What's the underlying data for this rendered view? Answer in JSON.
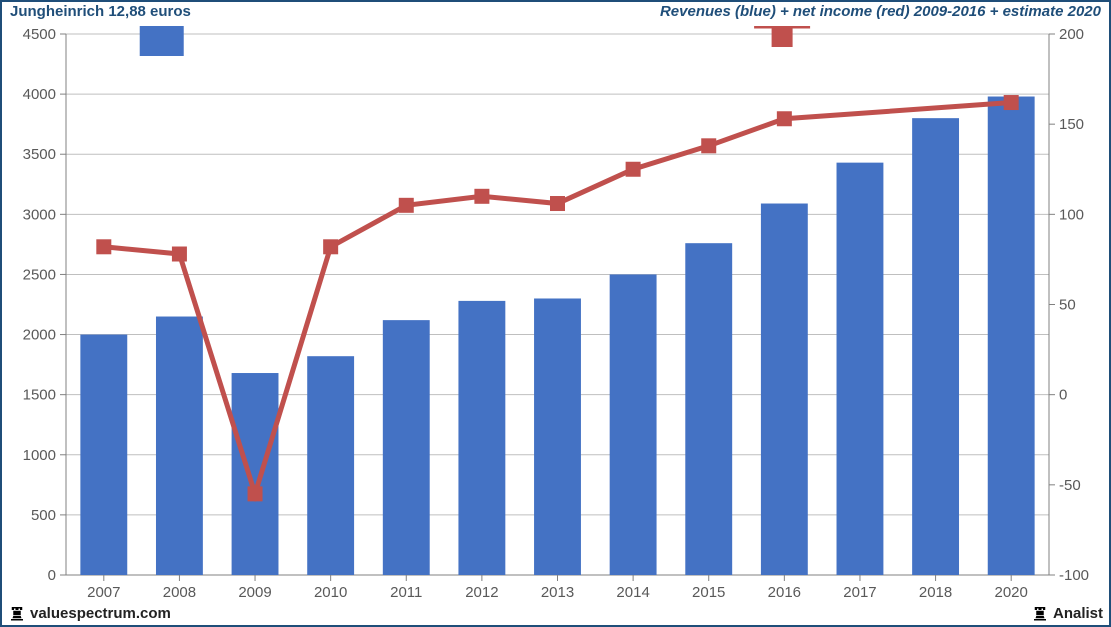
{
  "header": {
    "left": "Jungheinrich 12,88 euros",
    "right": "Revenues (blue) + net income (red) 2009-2016 + estimate 2020",
    "text_color": "#1f4e79"
  },
  "footer": {
    "left": "valuespectrum.com",
    "right": "Analist",
    "icon_color": "#000000"
  },
  "chart": {
    "type": "bar+line",
    "categories": [
      "2007",
      "2008",
      "2009",
      "2010",
      "2011",
      "2012",
      "2013",
      "2014",
      "2015",
      "2016",
      "2017",
      "2018",
      "2020"
    ],
    "left_axis": {
      "min": 0,
      "max": 4500,
      "tick_step": 500,
      "tick_fontsize": 15,
      "tick_color": "#595959"
    },
    "right_axis": {
      "min": -100,
      "max": 200,
      "tick_step": 50,
      "tick_fontsize": 15,
      "tick_color": "#595959"
    },
    "x_axis": {
      "tick_fontsize": 15,
      "tick_color": "#595959"
    },
    "grid_color": "#bfbfbf",
    "axis_line_color": "#808080",
    "plot_background": "#ffffff",
    "bar_series": {
      "label": "revenue",
      "color": "#4472c4",
      "bar_width": 0.62,
      "values": [
        2000,
        2150,
        1680,
        1820,
        2120,
        2280,
        2300,
        2500,
        2760,
        3090,
        3430,
        3800,
        3980
      ]
    },
    "line_series": {
      "label": "income",
      "line_color": "#c0504d",
      "marker_color": "#c0504d",
      "line_width": 5,
      "marker_size": 15,
      "values": [
        82,
        78,
        -55,
        82,
        105,
        110,
        106,
        125,
        138,
        153,
        null,
        null,
        162
      ],
      "extrapolate_to_index": 12
    },
    "legend": {
      "bar_pos": {
        "x": 0.075,
        "y_top": 0.018
      },
      "line_pos": {
        "x": 0.7,
        "y_top": 0.018
      },
      "fontsize": 24,
      "text_color": "#595959"
    }
  }
}
